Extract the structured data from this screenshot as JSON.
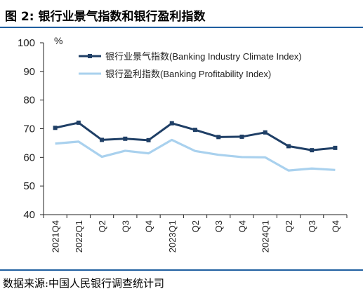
{
  "figure": {
    "title": "图 2: 银行业景气指数和银行盈利指数",
    "source": "数据来源:中国人民银行调查统计司"
  },
  "colors": {
    "rule": "#1f5fa0",
    "series_dark": "#1f3f66",
    "series_light": "#a9d1ee"
  },
  "chart_data": {
    "type": "line",
    "unit_label": "%",
    "categories": [
      "2021Q4",
      "2022Q1",
      "Q2",
      "Q3",
      "Q4",
      "2023Q1",
      "Q2",
      "Q3",
      "Q4",
      "2024Q1",
      "Q2",
      "Q3",
      "Q4"
    ],
    "ylim": [
      40,
      100
    ],
    "yticks": [
      40,
      50,
      60,
      70,
      80,
      90,
      100
    ],
    "grid": false,
    "legend_position": "top-right",
    "series": [
      {
        "name": "银行业景气指数(Banking Industry Climate Index)",
        "color": "#1f3f66",
        "marker": "square",
        "values": [
          70.3,
          72.1,
          66.1,
          66.5,
          66.0,
          71.9,
          69.6,
          67.1,
          67.2,
          68.7,
          63.9,
          62.5,
          63.3
        ]
      },
      {
        "name": "银行盈利指数(Banking Profitability Index)",
        "color": "#a9d1ee",
        "marker": "none",
        "values": [
          64.8,
          65.5,
          60.2,
          62.3,
          61.4,
          66.1,
          62.2,
          60.9,
          60.1,
          60.0,
          55.4,
          56.1,
          55.6
        ]
      }
    ]
  }
}
